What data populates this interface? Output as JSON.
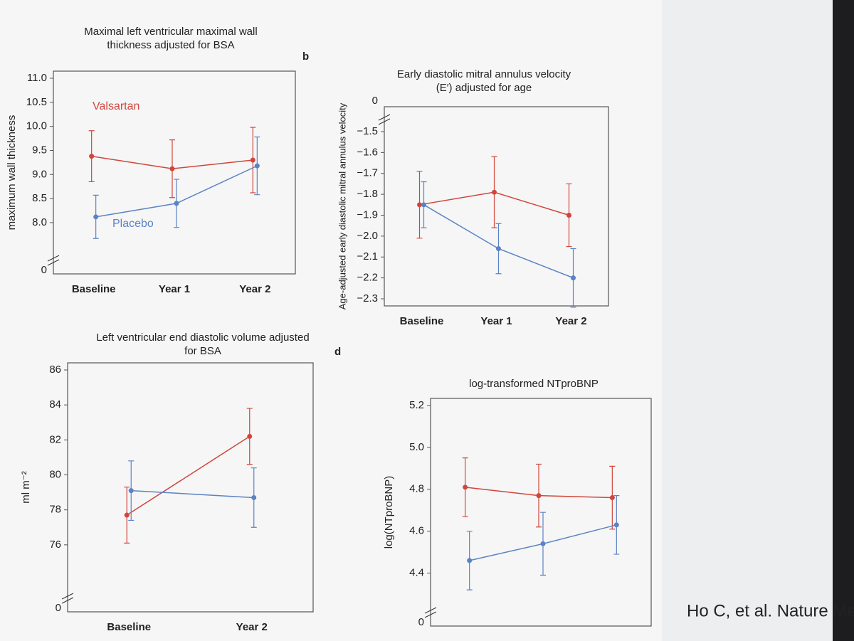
{
  "chart_data": [
    {
      "type": "line",
      "title": "Maximal left ventricular maximal wall thickness adjusted for BSA",
      "ylabel": "maximum wall thickness",
      "categories": [
        "Baseline",
        "Year 1",
        "Year 2"
      ],
      "series": [
        {
          "name": "Valsartan",
          "color": "#d0463c",
          "values": [
            9.38,
            9.12,
            9.3
          ],
          "errors": [
            0.53,
            0.6,
            0.68
          ]
        },
        {
          "name": "Placebo",
          "color": "#5b83c4",
          "values": [
            8.12,
            8.4,
            9.18
          ],
          "errors": [
            0.45,
            0.5,
            0.6
          ]
        }
      ],
      "ylim": [
        7.6,
        11.0
      ],
      "yticks": [
        {
          "value": 11.0,
          "label": "11.0"
        },
        10.5,
        {
          "value": 10.0,
          "label": "10.0"
        },
        9.5,
        {
          "value": 9.0,
          "label": "9.0"
        },
        8.5,
        {
          "value": 8.0,
          "label": "8.0"
        }
      ],
      "y_break_label": "0",
      "y_break_at": "bottom"
    },
    {
      "type": "line",
      "panel": "b",
      "title": "Early diastolic mitral annulus velocity (E′) adjusted for age",
      "ylabel": "Age-adjusted early diastolic mitral annulus velocity",
      "categories": [
        "Baseline",
        "Year 1",
        "Year 2"
      ],
      "series": [
        {
          "color": "#d0463c",
          "values": [
            -1.85,
            -1.79,
            -1.9
          ],
          "errors": [
            0.16,
            0.17,
            0.15
          ]
        },
        {
          "color": "#5b83c4",
          "values": [
            -1.85,
            -2.06,
            -2.2
          ],
          "errors": [
            0.11,
            0.12,
            0.14
          ]
        }
      ],
      "ylim": [
        -2.3,
        -1.5
      ],
      "yticks": [
        {
          "value": -1.5,
          "label": "−1.5"
        },
        {
          "value": -1.6,
          "label": "−1.6"
        },
        {
          "value": -1.7,
          "label": "−1.7"
        },
        {
          "value": -1.8,
          "label": "−1.8"
        },
        {
          "value": -1.9,
          "label": "−1.9"
        },
        {
          "value": -2.0,
          "label": "−2.0"
        },
        {
          "value": -2.1,
          "label": "−2.1"
        },
        {
          "value": -2.2,
          "label": "−2.2"
        },
        {
          "value": -2.3,
          "label": "−2.3"
        }
      ],
      "y_break_label": "0",
      "y_break_at": "top"
    },
    {
      "type": "line",
      "title": "Left ventricular end diastolic volume adjusted for BSA",
      "ylabel": "ml m⁻²",
      "categories": [
        "Baseline",
        "Year 2"
      ],
      "series": [
        {
          "color": "#d0463c",
          "values": [
            77.7,
            82.2
          ],
          "errors": [
            1.6,
            1.6
          ]
        },
        {
          "color": "#5b83c4",
          "values": [
            79.1,
            78.7
          ],
          "errors": [
            1.7,
            1.7
          ]
        }
      ],
      "ylim": [
        74,
        86
      ],
      "yticks": [
        86,
        84,
        82,
        80,
        78,
        76
      ],
      "y_break_label": "0",
      "y_break_at": "bottom"
    },
    {
      "type": "line",
      "panel": "d",
      "title": "log-transformed NTproBNP",
      "ylabel": "log(NTproBNP)",
      "categories": [
        null,
        null,
        null
      ],
      "series": [
        {
          "color": "#d0463c",
          "values": [
            4.81,
            4.77,
            4.76
          ],
          "errors": [
            0.14,
            0.15,
            0.15
          ]
        },
        {
          "color": "#5b83c4",
          "values": [
            4.46,
            4.54,
            4.63
          ],
          "errors": [
            0.14,
            0.15,
            0.14
          ]
        }
      ],
      "ylim": [
        4.3,
        5.2
      ],
      "yticks": [
        5.2,
        {
          "value": 5.0,
          "label": "5.0"
        },
        4.8,
        4.6,
        4.4
      ],
      "y_break_label": "0",
      "y_break_at": "bottom"
    }
  ],
  "citation": "Ho C, et al. Nature Me"
}
